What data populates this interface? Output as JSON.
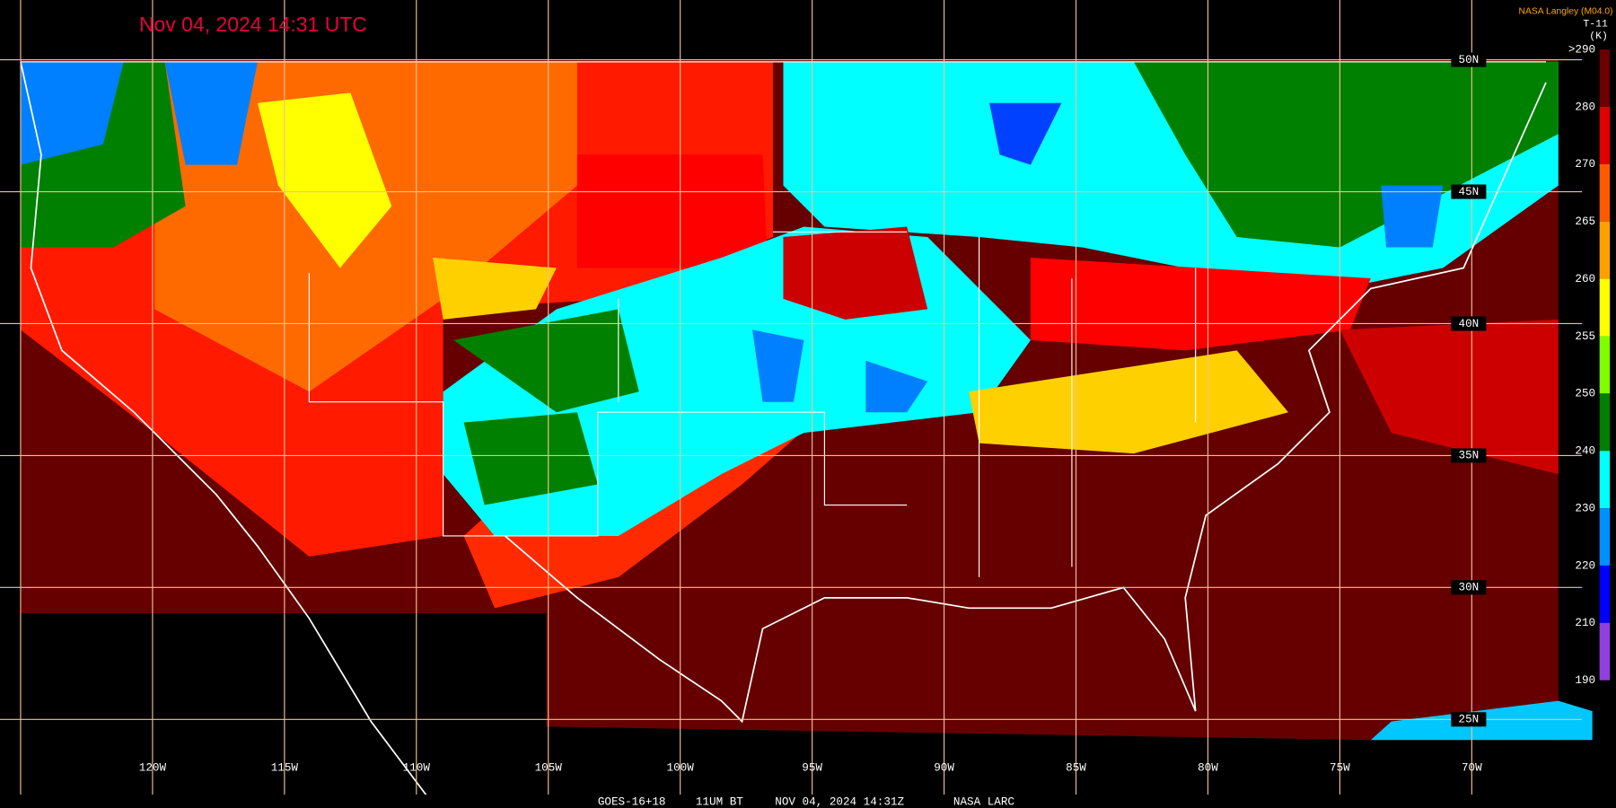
{
  "header": {
    "timestamp": "Nov 04, 2024 14:31 UTC",
    "source": "NASA Langley (M04.0)",
    "product": "T-11",
    "unit": "(K)"
  },
  "colorbar": {
    "labels": [
      ">290",
      "280",
      "270",
      "265",
      "260",
      "255",
      "250",
      "240",
      "230",
      "220",
      "210",
      "190"
    ],
    "colors": [
      "#6a0000",
      "#e00000",
      "#ff5a00",
      "#ffa000",
      "#ffff00",
      "#80ff00",
      "#008000",
      "#00ffff",
      "#0090ff",
      "#0000ff",
      "#9040e0"
    ]
  },
  "grid": {
    "latitude_labels": [
      "50N",
      "45N",
      "40N",
      "35N",
      "30N",
      "25N"
    ],
    "longitude_labels": [
      "120W",
      "115W",
      "110W",
      "105W",
      "100W",
      "95W",
      "90W",
      "85W",
      "80W",
      "75W",
      "70W"
    ]
  },
  "footer": {
    "satellite": "GOES-16+18",
    "channel": "11UM BT",
    "time": "NOV 04, 2024 14:31Z",
    "agency": "NASA LARC"
  }
}
